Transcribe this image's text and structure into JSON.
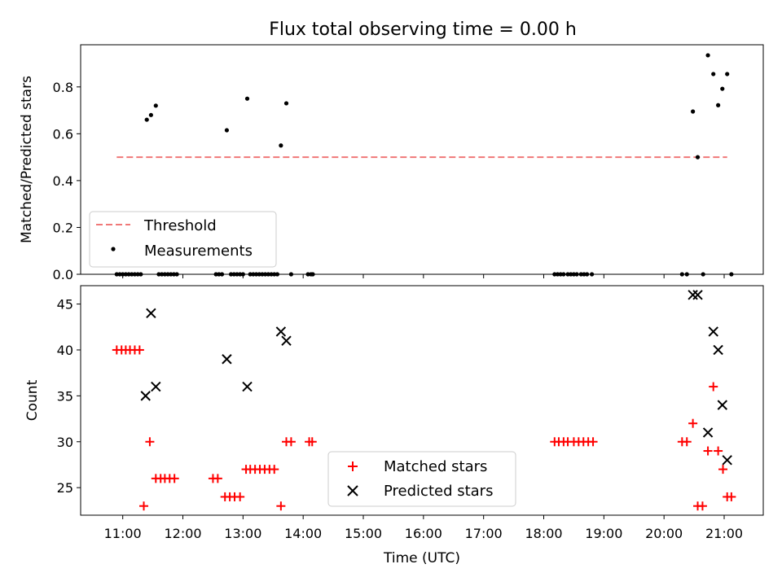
{
  "title": "Flux total observing time = 0.00 h",
  "chart_data": [
    {
      "type": "scatter",
      "ylabel": "Matched/Predicted stars",
      "ylim": [
        0,
        0.98
      ],
      "yticks": [
        0.0,
        0.2,
        0.4,
        0.6,
        0.8
      ],
      "ytick_labels": [
        "0.0",
        "0.2",
        "0.4",
        "0.6",
        "0.8"
      ],
      "threshold": {
        "name": "Threshold",
        "value": 0.5,
        "x_range": [
          10.9,
          21.05
        ],
        "color": "#f07878"
      },
      "series": [
        {
          "name": "Measurements",
          "color": "#000000",
          "marker": "dot",
          "points": [
            [
              10.9,
              0
            ],
            [
              10.95,
              0
            ],
            [
              11.0,
              0
            ],
            [
              11.05,
              0
            ],
            [
              11.1,
              0
            ],
            [
              11.15,
              0
            ],
            [
              11.2,
              0
            ],
            [
              11.25,
              0
            ],
            [
              11.3,
              0
            ],
            [
              11.4,
              0.66
            ],
            [
              11.47,
              0.68
            ],
            [
              11.55,
              0.72
            ],
            [
              11.6,
              0
            ],
            [
              11.65,
              0
            ],
            [
              11.7,
              0
            ],
            [
              11.75,
              0
            ],
            [
              11.8,
              0
            ],
            [
              11.85,
              0
            ],
            [
              11.9,
              0
            ],
            [
              12.55,
              0
            ],
            [
              12.6,
              0
            ],
            [
              12.65,
              0
            ],
            [
              12.73,
              0.615
            ],
            [
              12.8,
              0
            ],
            [
              12.85,
              0
            ],
            [
              12.9,
              0
            ],
            [
              12.95,
              0
            ],
            [
              13.0,
              0
            ],
            [
              13.07,
              0.75
            ],
            [
              13.12,
              0
            ],
            [
              13.17,
              0
            ],
            [
              13.22,
              0
            ],
            [
              13.27,
              0
            ],
            [
              13.32,
              0
            ],
            [
              13.37,
              0
            ],
            [
              13.42,
              0
            ],
            [
              13.47,
              0
            ],
            [
              13.52,
              0
            ],
            [
              13.57,
              0
            ],
            [
              13.63,
              0.55
            ],
            [
              13.72,
              0.73
            ],
            [
              13.8,
              0
            ],
            [
              14.08,
              0
            ],
            [
              14.13,
              0
            ],
            [
              14.16,
              0
            ],
            [
              18.18,
              0
            ],
            [
              18.23,
              0
            ],
            [
              18.28,
              0
            ],
            [
              18.33,
              0
            ],
            [
              18.4,
              0
            ],
            [
              18.45,
              0
            ],
            [
              18.5,
              0
            ],
            [
              18.55,
              0
            ],
            [
              18.62,
              0
            ],
            [
              18.67,
              0
            ],
            [
              18.72,
              0
            ],
            [
              18.8,
              0
            ],
            [
              20.3,
              0
            ],
            [
              20.38,
              0
            ],
            [
              20.48,
              0.695
            ],
            [
              20.56,
              0.5
            ],
            [
              20.65,
              0
            ],
            [
              20.73,
              0.935
            ],
            [
              20.82,
              0.855
            ],
            [
              20.9,
              0.722
            ],
            [
              20.97,
              0.792
            ],
            [
              21.05,
              0.855
            ],
            [
              21.12,
              0
            ]
          ]
        }
      ]
    },
    {
      "type": "scatter",
      "xlabel": "Time (UTC)",
      "ylabel": "Count",
      "ylim": [
        22,
        47
      ],
      "xlim": [
        10.3,
        21.65
      ],
      "xticks": [
        11,
        12,
        13,
        14,
        15,
        16,
        17,
        18,
        19,
        20,
        21
      ],
      "xtick_labels": [
        "11:00",
        "12:00",
        "13:00",
        "14:00",
        "15:00",
        "16:00",
        "17:00",
        "18:00",
        "19:00",
        "20:00",
        "21:00"
      ],
      "yticks": [
        25,
        30,
        35,
        40,
        45
      ],
      "ytick_labels": [
        "25",
        "30",
        "35",
        "40",
        "45"
      ],
      "series": [
        {
          "name": "Matched stars",
          "color": "#ff0000",
          "marker": "plus",
          "points": [
            [
              10.9,
              40
            ],
            [
              10.98,
              40
            ],
            [
              11.05,
              40
            ],
            [
              11.12,
              40
            ],
            [
              11.2,
              40
            ],
            [
              11.28,
              40
            ],
            [
              11.35,
              23
            ],
            [
              11.45,
              30
            ],
            [
              11.55,
              26
            ],
            [
              11.63,
              26
            ],
            [
              11.7,
              26
            ],
            [
              11.78,
              26
            ],
            [
              11.86,
              26
            ],
            [
              12.5,
              26
            ],
            [
              12.58,
              26
            ],
            [
              12.7,
              24
            ],
            [
              12.78,
              24
            ],
            [
              12.86,
              24
            ],
            [
              12.95,
              24
            ],
            [
              13.05,
              27
            ],
            [
              13.12,
              27
            ],
            [
              13.2,
              27
            ],
            [
              13.28,
              27
            ],
            [
              13.36,
              27
            ],
            [
              13.44,
              27
            ],
            [
              13.52,
              27
            ],
            [
              13.63,
              23
            ],
            [
              13.72,
              30
            ],
            [
              13.8,
              30
            ],
            [
              14.1,
              30
            ],
            [
              14.15,
              30
            ],
            [
              18.18,
              30
            ],
            [
              18.25,
              30
            ],
            [
              18.33,
              30
            ],
            [
              18.4,
              30
            ],
            [
              18.5,
              30
            ],
            [
              18.58,
              30
            ],
            [
              18.66,
              30
            ],
            [
              18.74,
              30
            ],
            [
              18.82,
              30
            ],
            [
              20.3,
              30
            ],
            [
              20.38,
              30
            ],
            [
              20.48,
              32
            ],
            [
              20.56,
              23
            ],
            [
              20.64,
              23
            ],
            [
              20.73,
              29
            ],
            [
              20.82,
              36
            ],
            [
              20.9,
              29
            ],
            [
              20.98,
              27
            ],
            [
              21.05,
              24
            ],
            [
              21.12,
              24
            ]
          ]
        },
        {
          "name": "Predicted stars",
          "color": "#000000",
          "marker": "cross",
          "points": [
            [
              11.38,
              35
            ],
            [
              11.47,
              44
            ],
            [
              11.55,
              36
            ],
            [
              12.73,
              39
            ],
            [
              13.07,
              36
            ],
            [
              13.63,
              42
            ],
            [
              13.72,
              41
            ],
            [
              20.48,
              46
            ],
            [
              20.56,
              46
            ],
            [
              20.73,
              31
            ],
            [
              20.82,
              42
            ],
            [
              20.9,
              40
            ],
            [
              20.97,
              34
            ],
            [
              21.05,
              28
            ]
          ]
        }
      ]
    }
  ]
}
